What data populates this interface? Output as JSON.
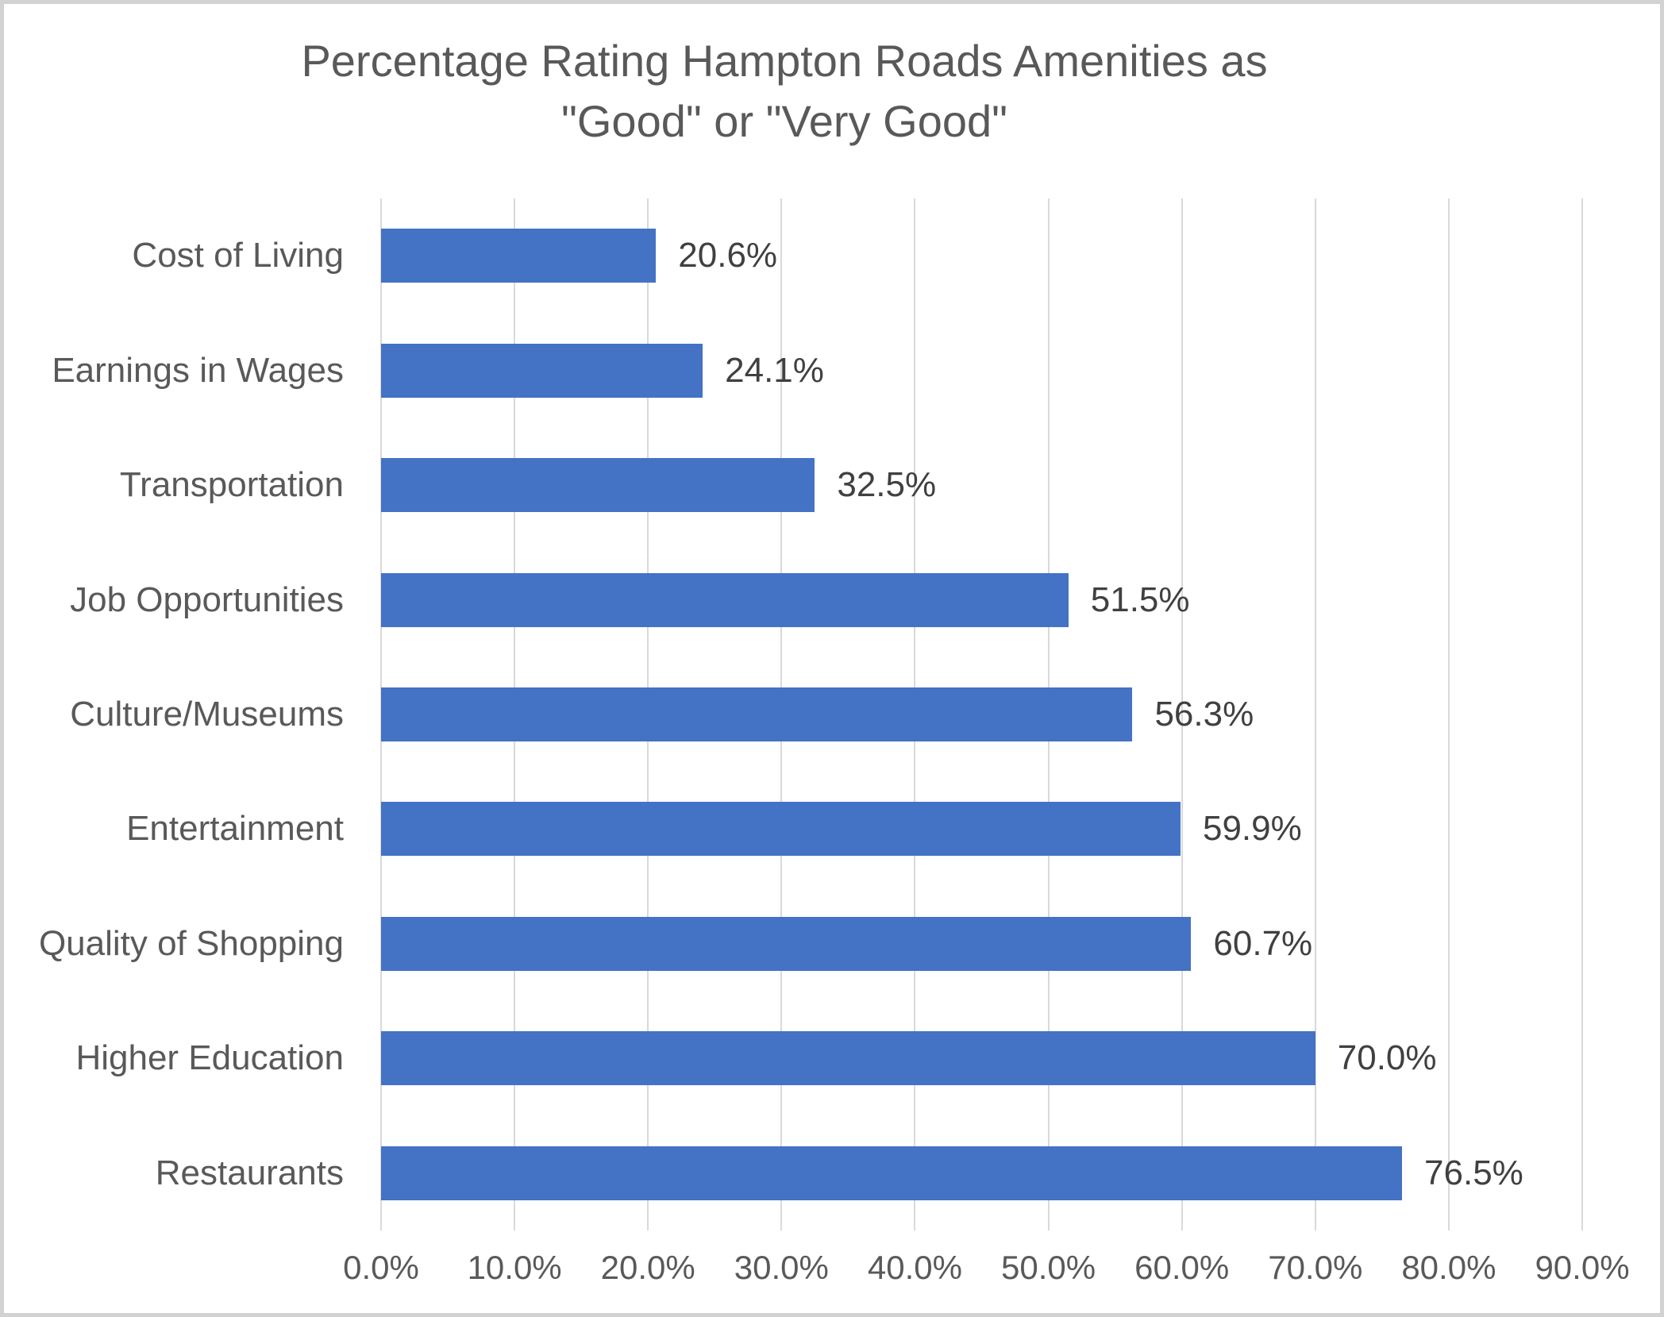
{
  "chart_data": {
    "type": "bar",
    "orientation": "horizontal",
    "title": "Percentage Rating Hampton Roads Amenities as \"Good\" or \"Very Good\"",
    "title_lines": [
      "Percentage Rating Hampton Roads Amenities as",
      "\"Good\" or \"Very Good\""
    ],
    "categories": [
      "Cost of Living",
      "Earnings in Wages",
      "Transportation",
      "Job Opportunities",
      "Culture/Museums",
      "Entertainment",
      "Quality of Shopping",
      "Higher Education",
      "Restaurants"
    ],
    "values": [
      20.6,
      24.1,
      32.5,
      51.5,
      56.3,
      59.9,
      60.7,
      70.0,
      76.5
    ],
    "value_labels": [
      "20.6%",
      "24.1%",
      "32.5%",
      "51.5%",
      "56.3%",
      "59.9%",
      "60.7%",
      "70.0%",
      "76.5%"
    ],
    "x_tick_labels": [
      "0.0%",
      "10.0%",
      "20.0%",
      "30.0%",
      "40.0%",
      "50.0%",
      "60.0%",
      "70.0%",
      "80.0%",
      "90.0%"
    ],
    "xlim": [
      0,
      90
    ],
    "xlabel": "",
    "ylabel": "",
    "grid": "vertical-only",
    "legend": "none",
    "colors": {
      "bar": "#4472C4",
      "gridline": "#D9D9D9",
      "title_text": "#595959",
      "axis_text": "#595959",
      "data_label_text": "#404040",
      "chart_border": "#D2D2D2",
      "background": "#FFFFFF"
    }
  }
}
